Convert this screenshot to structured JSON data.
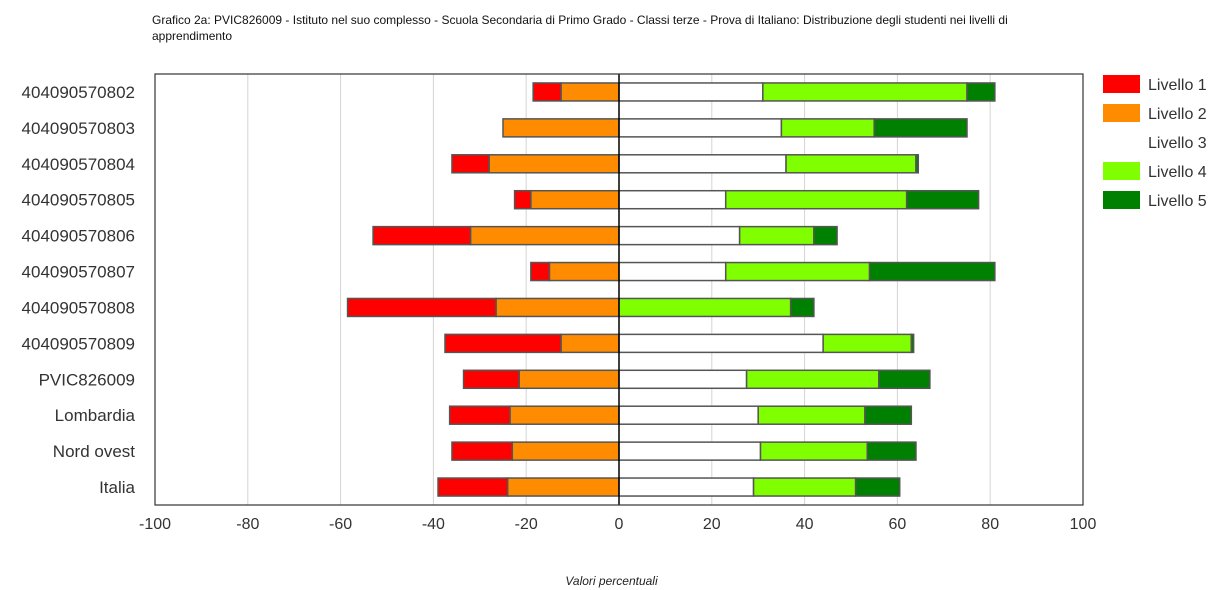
{
  "chart_data": {
    "type": "bar",
    "orientation": "horizontal",
    "stacked": "diverging",
    "title": "Grafico 2a: PVIC826009 - Istituto nel suo complesso - Scuola Secondaria di Primo Grado - Classi terze - Prova di Italiano: Distribuzione degli studenti nei livelli di apprendimento",
    "xlabel": "Valori percentuali",
    "ylabel": "",
    "xlim": [
      -100,
      100
    ],
    "xticks": [
      -100,
      -80,
      -60,
      -40,
      -20,
      0,
      20,
      40,
      60,
      80,
      100
    ],
    "grid": true,
    "legend_position": "right",
    "categories": [
      "404090570802",
      "404090570803",
      "404090570804",
      "404090570805",
      "404090570806",
      "404090570807",
      "404090570808",
      "404090570809",
      "PVIC826009",
      "Lombardia",
      "Nord ovest",
      "Italia"
    ],
    "series": [
      {
        "name": "Livello 1",
        "color": "#ff0000",
        "values": [
          6,
          0,
          8,
          3.5,
          21,
          4,
          32,
          25,
          12,
          13,
          13,
          15
        ]
      },
      {
        "name": "Livello 2",
        "color": "#ff8c00",
        "values": [
          12.5,
          25,
          28,
          19,
          32,
          15,
          26.5,
          12.5,
          21.5,
          23.5,
          23,
          24
        ]
      },
      {
        "name": "Livello 3",
        "color": "#ffffff",
        "values": [
          31,
          35,
          36,
          23,
          26,
          23,
          0,
          44,
          27.5,
          30,
          30.5,
          29
        ]
      },
      {
        "name": "Livello 4",
        "color": "#80ff00",
        "values": [
          44,
          20,
          28,
          39,
          16,
          31,
          37,
          19,
          28.5,
          23,
          23,
          22
        ]
      },
      {
        "name": "Livello 5",
        "color": "#008000",
        "values": [
          6,
          20,
          0.5,
          15.5,
          5,
          27,
          5,
          0.5,
          11,
          10,
          10.5,
          9.5
        ]
      }
    ]
  }
}
